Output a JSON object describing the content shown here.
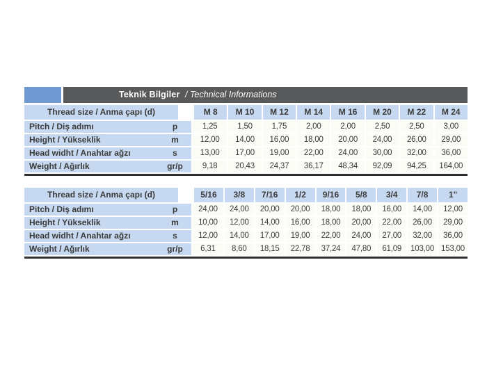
{
  "header": {
    "title_primary": "Teknik Bilgiler",
    "title_secondary": "/ Technical Informations"
  },
  "tables": [
    {
      "name": "metric-thread-table",
      "header_label": "Thread size / Anma çapı (d)",
      "columns": [
        "M 8",
        "M 10",
        "M 12",
        "M 14",
        "M 16",
        "M 20",
        "M 22",
        "M 24"
      ],
      "rows": [
        {
          "label": "Pitch / Diş adımı",
          "unit": "p",
          "values": [
            "1,25",
            "1,50",
            "1,75",
            "2,00",
            "2,00",
            "2,50",
            "2,50",
            "3,00"
          ]
        },
        {
          "label": "Height / Yükseklik",
          "unit": "m",
          "values": [
            "12,00",
            "14,00",
            "16,00",
            "18,00",
            "20,00",
            "24,00",
            "26,00",
            "29,00"
          ]
        },
        {
          "label": "Head widht / Anahtar ağzı",
          "unit": "s",
          "values": [
            "13,00",
            "17,00",
            "19,00",
            "22,00",
            "24,00",
            "30,00",
            "32,00",
            "36,00"
          ]
        },
        {
          "label": "Weight / Ağırlık",
          "unit": "gr/p",
          "values": [
            "9,18",
            "20,43",
            "24,37",
            "36,17",
            "48,34",
            "92,09",
            "94,25",
            "164,00"
          ]
        }
      ]
    },
    {
      "name": "imperial-thread-table",
      "header_label": "Thread size / Anma çapı (d)",
      "columns": [
        "5/16",
        "3/8",
        "7/16",
        "1/2",
        "9/16",
        "5/8",
        "3/4",
        "7/8",
        "1\""
      ],
      "rows": [
        {
          "label": "Pitch / Diş adımı",
          "unit": "p",
          "values": [
            "24,00",
            "24,00",
            "20,00",
            "20,00",
            "18,00",
            "18,00",
            "16,00",
            "14,00",
            "12,00"
          ]
        },
        {
          "label": "Height / Yükseklik",
          "unit": "m",
          "values": [
            "10,00",
            "12,00",
            "14,00",
            "16,00",
            "18,00",
            "20,00",
            "22,00",
            "26,00",
            "29,00"
          ]
        },
        {
          "label": "Head widht / Anahtar ağzı",
          "unit": "s",
          "values": [
            "12,00",
            "14,00",
            "17,00",
            "19,00",
            "22,00",
            "24,00",
            "27,00",
            "32,00",
            "36,00"
          ]
        },
        {
          "label": "Weight / Ağırlık",
          "unit": "gr/p",
          "values": [
            "6,31",
            "8,60",
            "18,15",
            "22,78",
            "37,24",
            "47,80",
            "61,09",
            "103,00",
            "153,00"
          ]
        }
      ]
    }
  ],
  "colors": {
    "accent_blue": "#6e99d1",
    "bar_gray": "#58595a",
    "cell_blue": "#c7d9f0",
    "cell_cream": "#fcfcf6",
    "border_dark": "#2f2f2f",
    "text": "#3a3a3a"
  }
}
